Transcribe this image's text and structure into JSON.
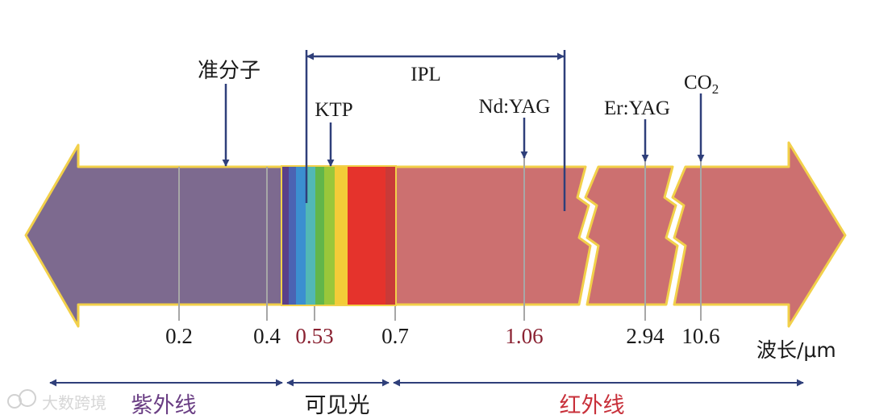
{
  "lasers": {
    "excimer": "准分子",
    "ipl": "IPL",
    "ktp": "KTP",
    "ndyag": "Nd:YAG",
    "eryag": "Er:YAG",
    "co2_main": "CO",
    "co2_sub": "2"
  },
  "ticks": {
    "t02": "0.2",
    "t04": "0.4",
    "t053": "0.53",
    "t07": "0.7",
    "t106": "1.06",
    "t294": "2.94",
    "t106b": "10.6"
  },
  "axis_label": "波长/μm",
  "regions": {
    "uv": "紫外线",
    "visible": "可见光",
    "ir": "红外线"
  },
  "watermark": "大数跨境",
  "colors": {
    "uv_band": "#7d6a8f",
    "ir_band": "#cc7070",
    "outline": "#f2d04a",
    "arrow": "#2f3f7a",
    "highlight": "#8a2232",
    "uv_label": "#6a3e84",
    "ir_label": "#c8303a"
  }
}
